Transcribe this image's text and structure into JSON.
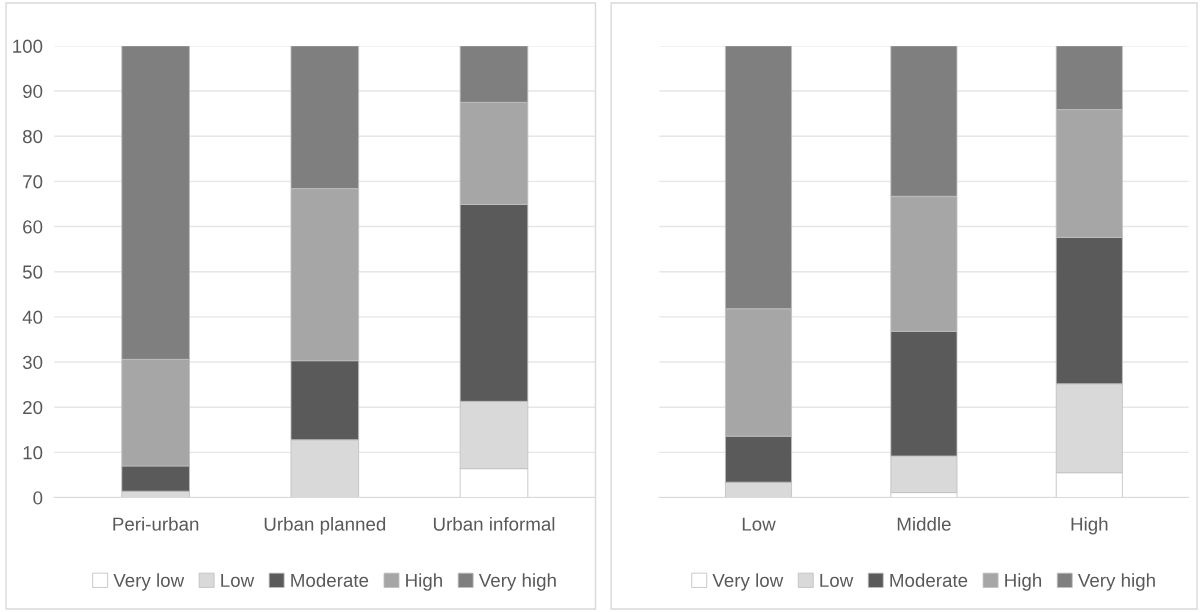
{
  "chart_data": [
    {
      "type": "bar",
      "stacked": true,
      "categories": [
        "Peri-urban",
        "Urban planned",
        "Urban informal"
      ],
      "ylim": [
        0,
        100
      ],
      "yticks": [
        0,
        10,
        20,
        30,
        40,
        50,
        60,
        70,
        80,
        90,
        100
      ],
      "grid": "y",
      "legend": "bottom",
      "series": [
        {
          "name": "Very low",
          "color": "#ffffff",
          "values": [
            0,
            0,
            6.4
          ]
        },
        {
          "name": "Low",
          "color": "#d9d9d9",
          "values": [
            1.4,
            12.8,
            14.9
          ]
        },
        {
          "name": "Moderate",
          "color": "#5a5a5a",
          "values": [
            5.6,
            17.5,
            43.6
          ]
        },
        {
          "name": "High",
          "color": "#a6a6a6",
          "values": [
            23.6,
            38.1,
            22.6
          ]
        },
        {
          "name": "Very high",
          "color": "#7f7f7f",
          "values": [
            69.4,
            31.6,
            12.5
          ]
        }
      ]
    },
    {
      "type": "bar",
      "stacked": true,
      "categories": [
        "Low",
        "Middle",
        "High"
      ],
      "ylim": [
        0,
        100
      ],
      "yticks": [
        0,
        10,
        20,
        30,
        40,
        50,
        60,
        70,
        80,
        90,
        100
      ],
      "grid": "y",
      "legend": "bottom",
      "tick_labels": "x",
      "series": [
        {
          "name": "Very low",
          "color": "#ffffff",
          "values": [
            0,
            1.1,
            5.5
          ]
        },
        {
          "name": "Low",
          "color": "#d9d9d9",
          "values": [
            3.4,
            8.1,
            19.7
          ]
        },
        {
          "name": "Moderate",
          "color": "#5a5a5a",
          "values": [
            10.2,
            27.6,
            32.4
          ]
        },
        {
          "name": "High",
          "color": "#a6a6a6",
          "values": [
            28.2,
            29.9,
            28.3
          ]
        },
        {
          "name": "Very high",
          "color": "#7f7f7f",
          "values": [
            58.2,
            33.3,
            14.1
          ]
        }
      ]
    }
  ]
}
